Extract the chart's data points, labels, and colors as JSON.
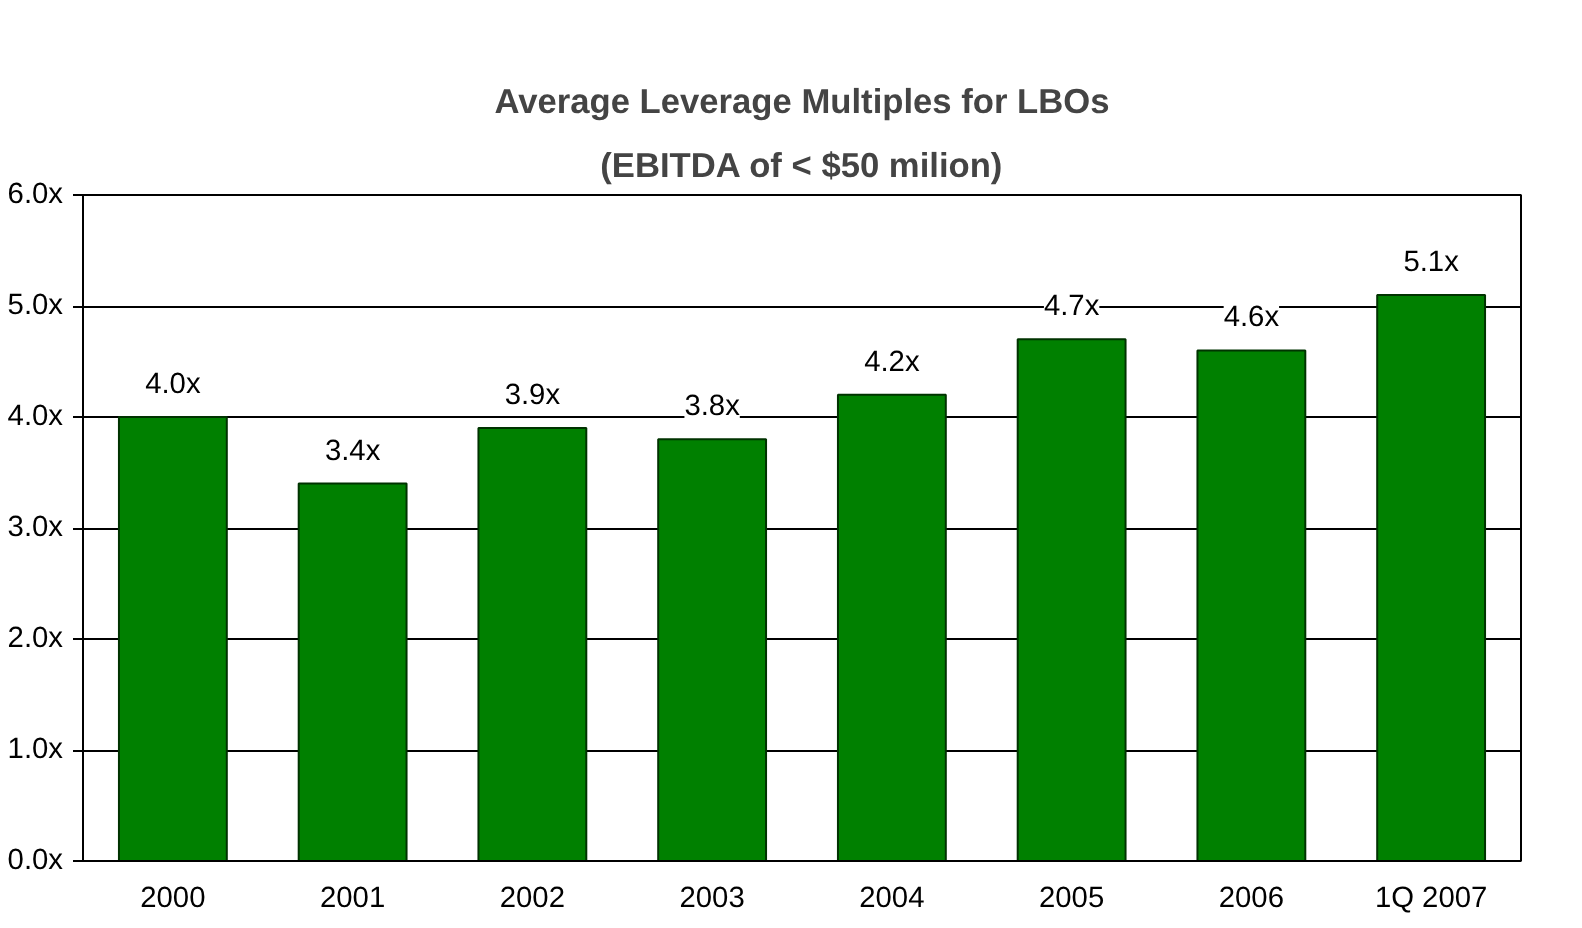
{
  "chart_data": {
    "type": "bar",
    "title": "Average Leverage Multiples for LBOs",
    "subtitle": "(EBITDA of < $50 milion)",
    "categories": [
      "2000",
      "2001",
      "2002",
      "2003",
      "2004",
      "2005",
      "2006",
      "1Q 2007"
    ],
    "values": [
      4.0,
      3.4,
      3.9,
      3.8,
      4.2,
      4.7,
      4.6,
      5.1
    ],
    "value_labels": [
      "4.0x",
      "3.4x",
      "3.9x",
      "3.8x",
      "4.2x",
      "4.7x",
      "4.6x",
      "5.1x"
    ],
    "color": "#008000",
    "ylim": [
      0,
      6
    ],
    "yticks": [
      {
        "value": 0,
        "label": "0.0x"
      },
      {
        "value": 1,
        "label": "1.0x"
      },
      {
        "value": 2,
        "label": "2.0x"
      },
      {
        "value": 3,
        "label": "3.0x"
      },
      {
        "value": 4,
        "label": "4.0x"
      },
      {
        "value": 5,
        "label": "5.0x"
      },
      {
        "value": 6,
        "label": "6.0x"
      }
    ],
    "grid": "y"
  }
}
